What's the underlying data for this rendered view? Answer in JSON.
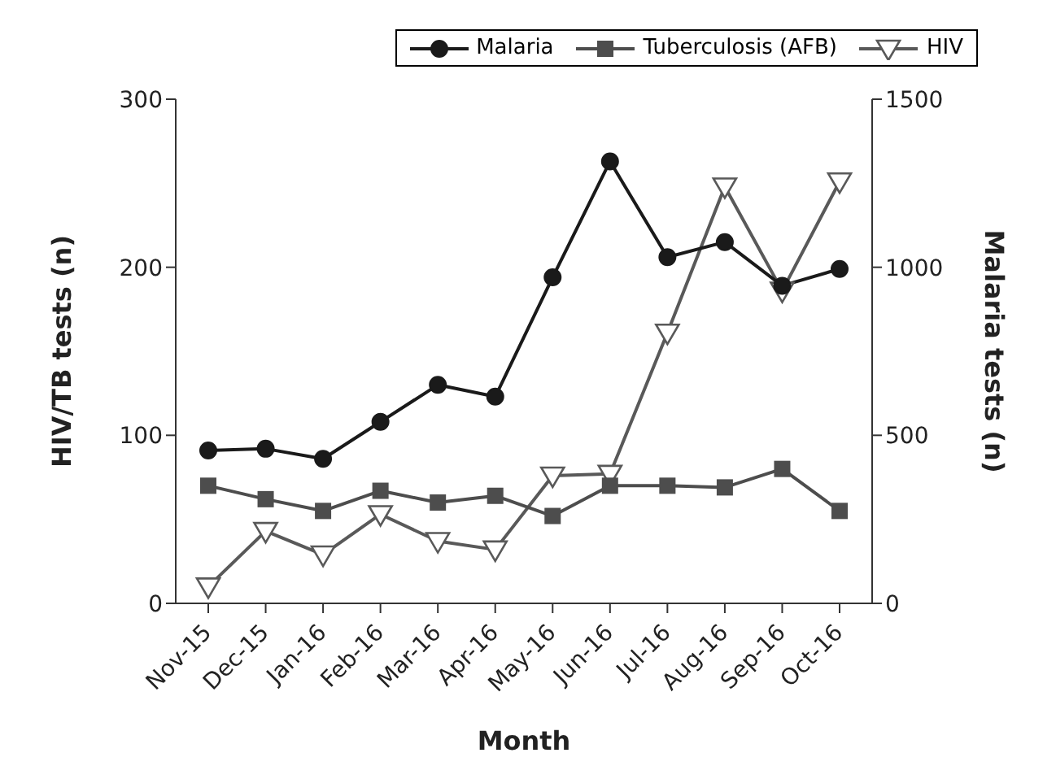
{
  "chart_data": {
    "type": "line",
    "xlabel": "Month",
    "ylabel": "HIV/TB tests (n)",
    "y2label": "Malaria tests (n)",
    "categories": [
      "Nov-15",
      "Dec-15",
      "Jan-16",
      "Feb-16",
      "Mar-16",
      "Apr-16",
      "May-16",
      "Jun-16",
      "Jul-16",
      "Aug-16",
      "Sep-16",
      "Oct-16"
    ],
    "series": [
      {
        "name": "Malaria",
        "color": "#1a1a1a",
        "marker": "circle",
        "axis": "y2",
        "values": [
          455,
          460,
          430,
          540,
          650,
          615,
          970,
          1315,
          1030,
          1075,
          945,
          995
        ]
      },
      {
        "name": "Tuberculosis (AFB)",
        "color": "#4d4d4d",
        "marker": "square",
        "values": [
          70,
          62,
          55,
          67,
          60,
          64,
          52,
          70,
          70,
          69,
          80,
          55
        ]
      },
      {
        "name": "HIV",
        "color": "#595959",
        "marker": "triangle",
        "values": [
          10,
          43,
          29,
          53,
          37,
          32,
          76,
          77,
          161,
          248,
          186,
          251
        ]
      }
    ],
    "ylim": [
      0,
      300
    ],
    "yticks": [
      0,
      100,
      200,
      300
    ],
    "y2lim": [
      0,
      1500
    ],
    "y2ticks": [
      0,
      500,
      1000,
      1500
    ],
    "grid": false,
    "legend": "top right"
  }
}
